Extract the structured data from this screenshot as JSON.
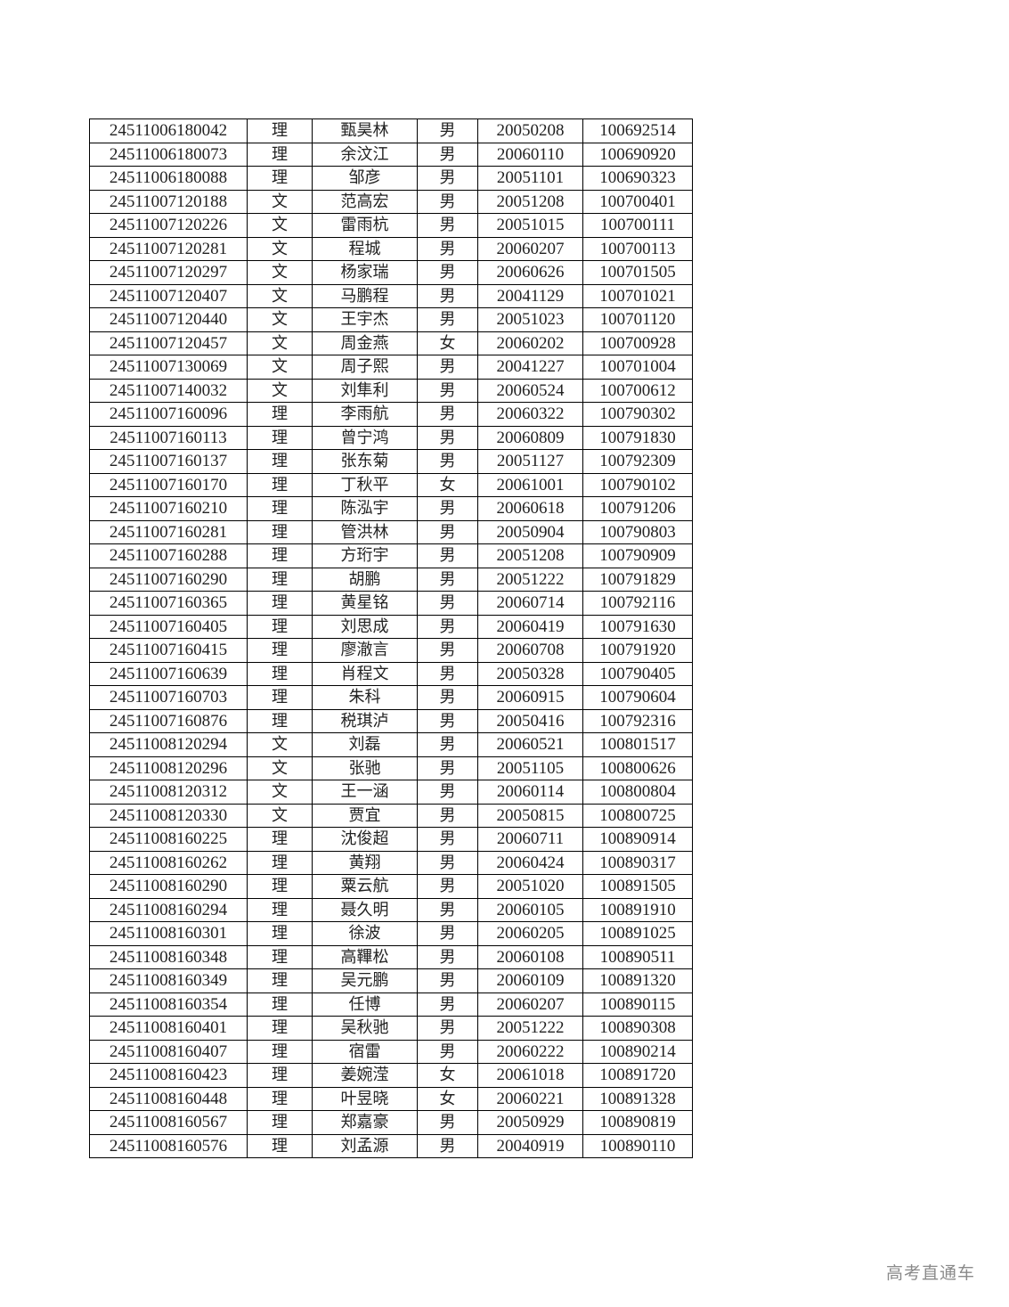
{
  "table": {
    "rows": [
      [
        "24511006180042",
        "理",
        "甄昊林",
        "男",
        "20050208",
        "100692514"
      ],
      [
        "24511006180073",
        "理",
        "余汶江",
        "男",
        "20060110",
        "100690920"
      ],
      [
        "24511006180088",
        "理",
        "邹彦",
        "男",
        "20051101",
        "100690323"
      ],
      [
        "24511007120188",
        "文",
        "范高宏",
        "男",
        "20051208",
        "100700401"
      ],
      [
        "24511007120226",
        "文",
        "雷雨杭",
        "男",
        "20051015",
        "100700111"
      ],
      [
        "24511007120281",
        "文",
        "程城",
        "男",
        "20060207",
        "100700113"
      ],
      [
        "24511007120297",
        "文",
        "杨家瑞",
        "男",
        "20060626",
        "100701505"
      ],
      [
        "24511007120407",
        "文",
        "马鹏程",
        "男",
        "20041129",
        "100701021"
      ],
      [
        "24511007120440",
        "文",
        "王宇杰",
        "男",
        "20051023",
        "100701120"
      ],
      [
        "24511007120457",
        "文",
        "周金燕",
        "女",
        "20060202",
        "100700928"
      ],
      [
        "24511007130069",
        "文",
        "周子熙",
        "男",
        "20041227",
        "100701004"
      ],
      [
        "24511007140032",
        "文",
        "刘隼利",
        "男",
        "20060524",
        "100700612"
      ],
      [
        "24511007160096",
        "理",
        "李雨航",
        "男",
        "20060322",
        "100790302"
      ],
      [
        "24511007160113",
        "理",
        "曾宁鸿",
        "男",
        "20060809",
        "100791830"
      ],
      [
        "24511007160137",
        "理",
        "张东菊",
        "男",
        "20051127",
        "100792309"
      ],
      [
        "24511007160170",
        "理",
        "丁秋平",
        "女",
        "20061001",
        "100790102"
      ],
      [
        "24511007160210",
        "理",
        "陈泓宇",
        "男",
        "20060618",
        "100791206"
      ],
      [
        "24511007160281",
        "理",
        "管洪林",
        "男",
        "20050904",
        "100790803"
      ],
      [
        "24511007160288",
        "理",
        "方珩宇",
        "男",
        "20051208",
        "100790909"
      ],
      [
        "24511007160290",
        "理",
        "胡鹏",
        "男",
        "20051222",
        "100791829"
      ],
      [
        "24511007160365",
        "理",
        "黄星铭",
        "男",
        "20060714",
        "100792116"
      ],
      [
        "24511007160405",
        "理",
        "刘思成",
        "男",
        "20060419",
        "100791630"
      ],
      [
        "24511007160415",
        "理",
        "廖澈言",
        "男",
        "20060708",
        "100791920"
      ],
      [
        "24511007160639",
        "理",
        "肖程文",
        "男",
        "20050328",
        "100790405"
      ],
      [
        "24511007160703",
        "理",
        "朱科",
        "男",
        "20060915",
        "100790604"
      ],
      [
        "24511007160876",
        "理",
        "税琪泸",
        "男",
        "20050416",
        "100792316"
      ],
      [
        "24511008120294",
        "文",
        "刘磊",
        "男",
        "20060521",
        "100801517"
      ],
      [
        "24511008120296",
        "文",
        "张驰",
        "男",
        "20051105",
        "100800626"
      ],
      [
        "24511008120312",
        "文",
        "王一涵",
        "男",
        "20060114",
        "100800804"
      ],
      [
        "24511008120330",
        "文",
        "贾宜",
        "男",
        "20050815",
        "100800725"
      ],
      [
        "24511008160225",
        "理",
        "沈俊超",
        "男",
        "20060711",
        "100890914"
      ],
      [
        "24511008160262",
        "理",
        "黄翔",
        "男",
        "20060424",
        "100890317"
      ],
      [
        "24511008160290",
        "理",
        "粟云航",
        "男",
        "20051020",
        "100891505"
      ],
      [
        "24511008160294",
        "理",
        "聂久明",
        "男",
        "20060105",
        "100891910"
      ],
      [
        "24511008160301",
        "理",
        "徐波",
        "男",
        "20060205",
        "100891025"
      ],
      [
        "24511008160348",
        "理",
        "高鞸松",
        "男",
        "20060108",
        "100890511"
      ],
      [
        "24511008160349",
        "理",
        "吴元鹏",
        "男",
        "20060109",
        "100891320"
      ],
      [
        "24511008160354",
        "理",
        "任博",
        "男",
        "20060207",
        "100890115"
      ],
      [
        "24511008160401",
        "理",
        "吴秋驰",
        "男",
        "20051222",
        "100890308"
      ],
      [
        "24511008160407",
        "理",
        "宿雷",
        "男",
        "20060222",
        "100890214"
      ],
      [
        "24511008160423",
        "理",
        "姜婉滢",
        "女",
        "20061018",
        "100891720"
      ],
      [
        "24511008160448",
        "理",
        "叶昱晓",
        "女",
        "20060221",
        "100891328"
      ],
      [
        "24511008160567",
        "理",
        "郑嘉豪",
        "男",
        "20050929",
        "100890819"
      ],
      [
        "24511008160576",
        "理",
        "刘孟源",
        "男",
        "20040919",
        "100890110"
      ]
    ]
  },
  "watermark": "高考直通车"
}
